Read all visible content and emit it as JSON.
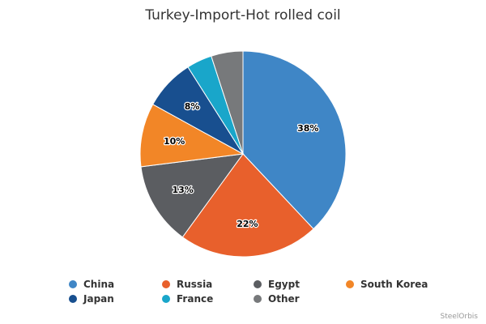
{
  "chart_data": {
    "type": "pie",
    "title": "Turkey-Import-Hot rolled coil",
    "categories": [
      "China",
      "Russia",
      "Egypt",
      "South Korea",
      "Japan",
      "France",
      "Other"
    ],
    "values": [
      38,
      22,
      13,
      10,
      8,
      4,
      5
    ],
    "value_labels": [
      "38%",
      "22%",
      "13%",
      "10%",
      "8%",
      null,
      null
    ],
    "colors": [
      "#3f86c6",
      "#e8602c",
      "#5b5d61",
      "#f28627",
      "#184f8f",
      "#19a6ca",
      "#77797b"
    ],
    "credit": "SteelOrbis"
  }
}
